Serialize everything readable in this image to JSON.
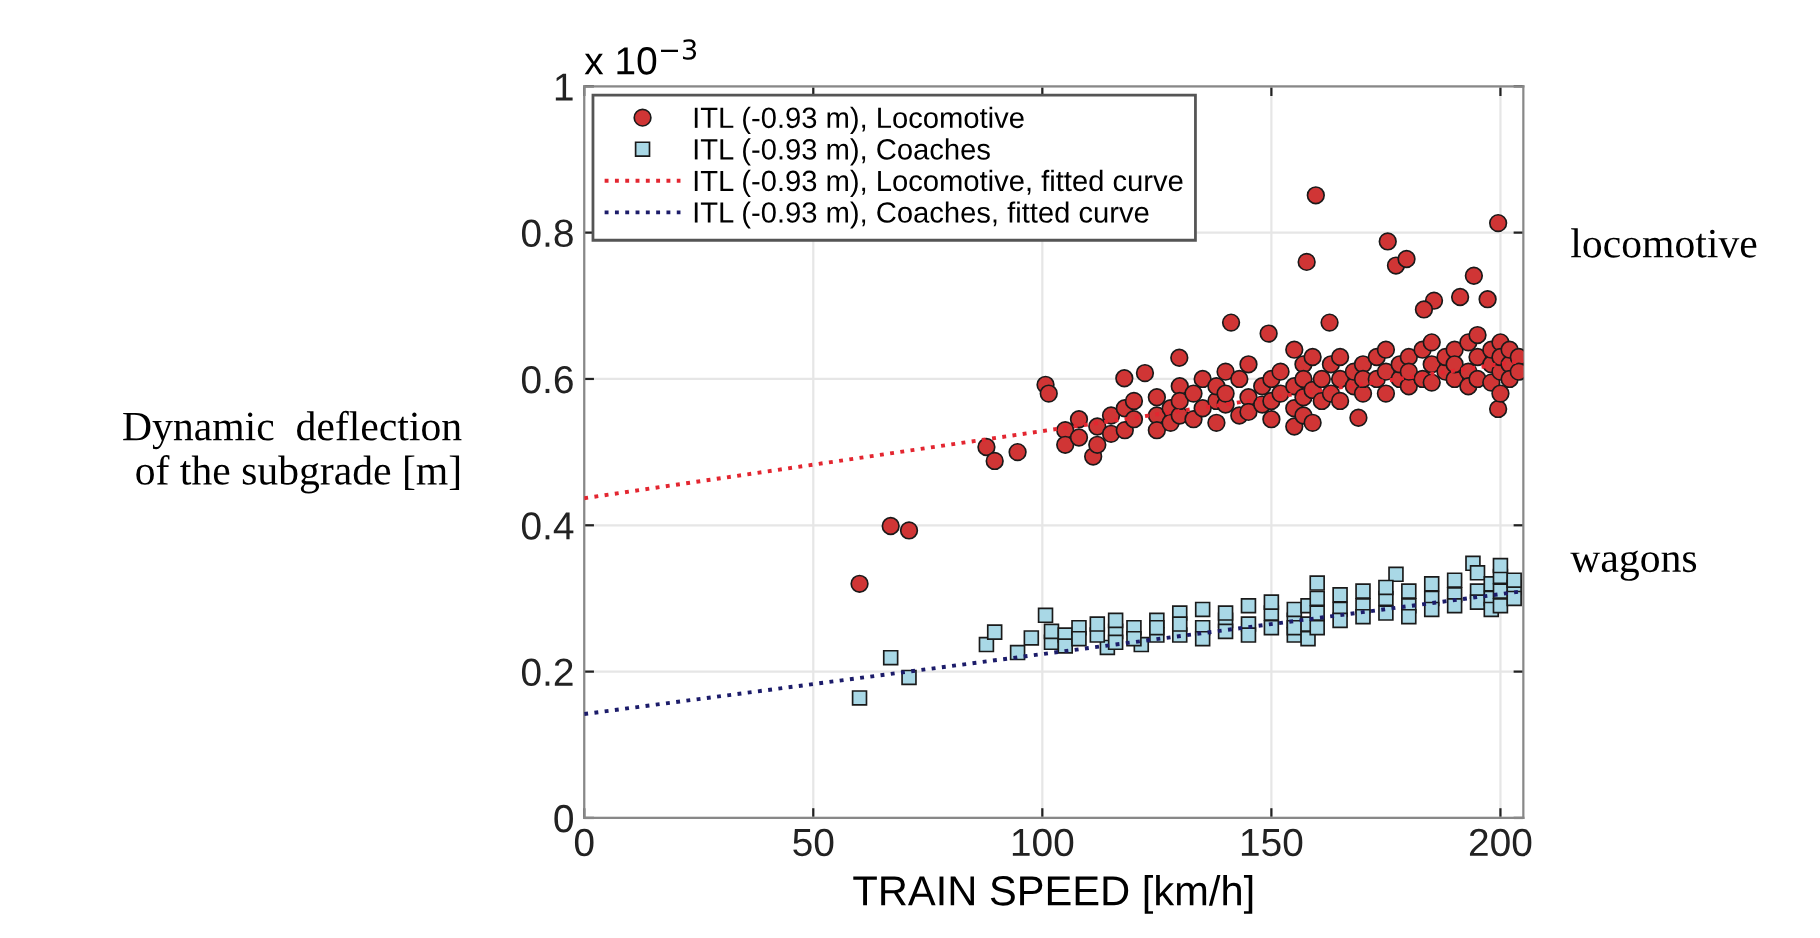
{
  "chart_data": {
    "type": "scatter",
    "xlabel": "TRAIN SPEED [km/h]",
    "ylabel": "Dynamic  deflection\nof the subgrade [m]",
    "xlim": [
      0,
      205
    ],
    "xticks": [
      0,
      50,
      100,
      150,
      200
    ],
    "ylim": [
      0,
      1
    ],
    "yticks": [
      0,
      0.2,
      0.4,
      0.6,
      0.8,
      1
    ],
    "grid": true,
    "legend": "top left",
    "annotations": [
      "x 10$^{−3}$",
      "locomotive",
      "wagons"
    ],
    "series": [
      {
        "name": "ITL (-0.93 m), Locomotive",
        "marker": "circle",
        "color": "#d03535",
        "x": [
          60.1,
          66.9,
          70.9,
          87.8,
          89.6,
          94.6,
          100.7,
          101.4,
          111.1,
          117.9,
          122.4,
          129.9,
          141.2,
          149.4,
          162.7,
          169,
          199.5,
          159.7,
          157.7,
          175.4,
          177.2,
          179.5,
          199.5,
          194.2,
          191.2,
          197.2,
          185.5,
          183.3,
          105,
          105,
          108,
          108,
          112,
          112,
          115,
          115,
          118,
          118,
          120,
          120,
          125,
          125,
          125,
          128,
          128,
          130,
          130,
          130,
          133,
          133,
          135,
          135,
          138,
          138,
          138,
          140,
          140,
          140,
          143,
          143,
          145,
          145,
          145,
          148,
          148,
          150,
          150,
          150,
          152,
          152,
          155,
          155,
          155,
          155,
          157,
          157,
          157,
          157,
          159,
          159,
          159,
          161,
          161,
          163,
          163,
          165,
          165,
          165,
          168,
          168,
          170,
          170,
          170,
          173,
          173,
          175,
          175,
          175,
          178,
          178,
          180,
          180,
          180,
          183,
          183,
          185,
          185,
          185,
          188,
          188,
          190,
          190,
          190,
          193,
          193,
          193,
          195,
          195,
          195,
          198,
          198,
          198,
          200,
          200,
          200,
          200,
          202,
          202,
          202,
          204,
          204
        ],
        "values": [
          0.32,
          0.399,
          0.393,
          0.507,
          0.488,
          0.5,
          0.592,
          0.58,
          0.494,
          0.601,
          0.608,
          0.629,
          0.677,
          0.662,
          0.677,
          0.547,
          0.559,
          0.851,
          0.76,
          0.788,
          0.755,
          0.764,
          0.813,
          0.741,
          0.712,
          0.709,
          0.707,
          0.695,
          0.53,
          0.51,
          0.52,
          0.545,
          0.535,
          0.51,
          0.55,
          0.525,
          0.56,
          0.53,
          0.545,
          0.57,
          0.55,
          0.575,
          0.53,
          0.56,
          0.54,
          0.59,
          0.55,
          0.57,
          0.58,
          0.545,
          0.6,
          0.56,
          0.57,
          0.59,
          0.54,
          0.61,
          0.565,
          0.58,
          0.55,
          0.6,
          0.575,
          0.62,
          0.555,
          0.59,
          0.565,
          0.6,
          0.57,
          0.545,
          0.61,
          0.58,
          0.64,
          0.59,
          0.56,
          0.535,
          0.62,
          0.6,
          0.575,
          0.55,
          0.63,
          0.585,
          0.54,
          0.6,
          0.57,
          0.62,
          0.58,
          0.6,
          0.57,
          0.63,
          0.59,
          0.61,
          0.62,
          0.58,
          0.6,
          0.6,
          0.63,
          0.61,
          0.58,
          0.64,
          0.6,
          0.62,
          0.63,
          0.59,
          0.61,
          0.6,
          0.64,
          0.62,
          0.595,
          0.65,
          0.61,
          0.63,
          0.64,
          0.6,
          0.62,
          0.61,
          0.65,
          0.59,
          0.63,
          0.6,
          0.66,
          0.62,
          0.64,
          0.595,
          0.65,
          0.61,
          0.63,
          0.58,
          0.62,
          0.64,
          0.6,
          0.63,
          0.61
        ]
      },
      {
        "name": "ITL (-0.93 m), Coaches",
        "marker": "square",
        "color": "#a9d8e6",
        "x": [
          60.1,
          66.9,
          70.9,
          87.8,
          89.6,
          97.6,
          100.7,
          94.6,
          114.2,
          121.6,
          160,
          177.2,
          194,
          102,
          102,
          105,
          105,
          108,
          108,
          112,
          112,
          116,
          116,
          116,
          120,
          120,
          125,
          125,
          125,
          130,
          130,
          130,
          135,
          135,
          135,
          140,
          140,
          140,
          145,
          145,
          145,
          150,
          150,
          150,
          155,
          155,
          155,
          155,
          158,
          158,
          158,
          160,
          160,
          160,
          165,
          165,
          165,
          170,
          170,
          170,
          175,
          175,
          175,
          180,
          180,
          180,
          185,
          185,
          185,
          190,
          190,
          190,
          195,
          195,
          195,
          198,
          198,
          198,
          200,
          200,
          200,
          200,
          203,
          203,
          203
        ],
        "values": [
          0.164,
          0.219,
          0.192,
          0.237,
          0.254,
          0.246,
          0.277,
          0.226,
          0.233,
          0.237,
          0.321,
          0.333,
          0.348,
          0.24,
          0.255,
          0.25,
          0.235,
          0.26,
          0.245,
          0.25,
          0.265,
          0.255,
          0.27,
          0.24,
          0.26,
          0.245,
          0.27,
          0.25,
          0.26,
          0.28,
          0.25,
          0.265,
          0.26,
          0.285,
          0.245,
          0.27,
          0.255,
          0.28,
          0.265,
          0.29,
          0.25,
          0.28,
          0.26,
          0.295,
          0.27,
          0.25,
          0.285,
          0.26,
          0.29,
          0.265,
          0.245,
          0.28,
          0.3,
          0.26,
          0.285,
          0.27,
          0.305,
          0.29,
          0.275,
          0.31,
          0.3,
          0.28,
          0.315,
          0.29,
          0.31,
          0.275,
          0.3,
          0.32,
          0.285,
          0.305,
          0.29,
          0.325,
          0.31,
          0.295,
          0.335,
          0.32,
          0.3,
          0.285,
          0.33,
          0.31,
          0.29,
          0.345,
          0.315,
          0.3,
          0.325
        ]
      },
      {
        "name": "ITL (-0.93 m), Locomotive, fitted curve",
        "type": "line",
        "line_style": "dotted",
        "color": "#e32630",
        "x": [
          0,
          205
        ],
        "values": [
          0.437,
          0.625
        ]
      },
      {
        "name": "ITL (-0.93 m), Coaches, fitted curve",
        "type": "line",
        "line_style": "dotted",
        "color": "#1c1c6a",
        "x": [
          0,
          205
        ],
        "values": [
          0.142,
          0.31
        ]
      }
    ]
  }
}
